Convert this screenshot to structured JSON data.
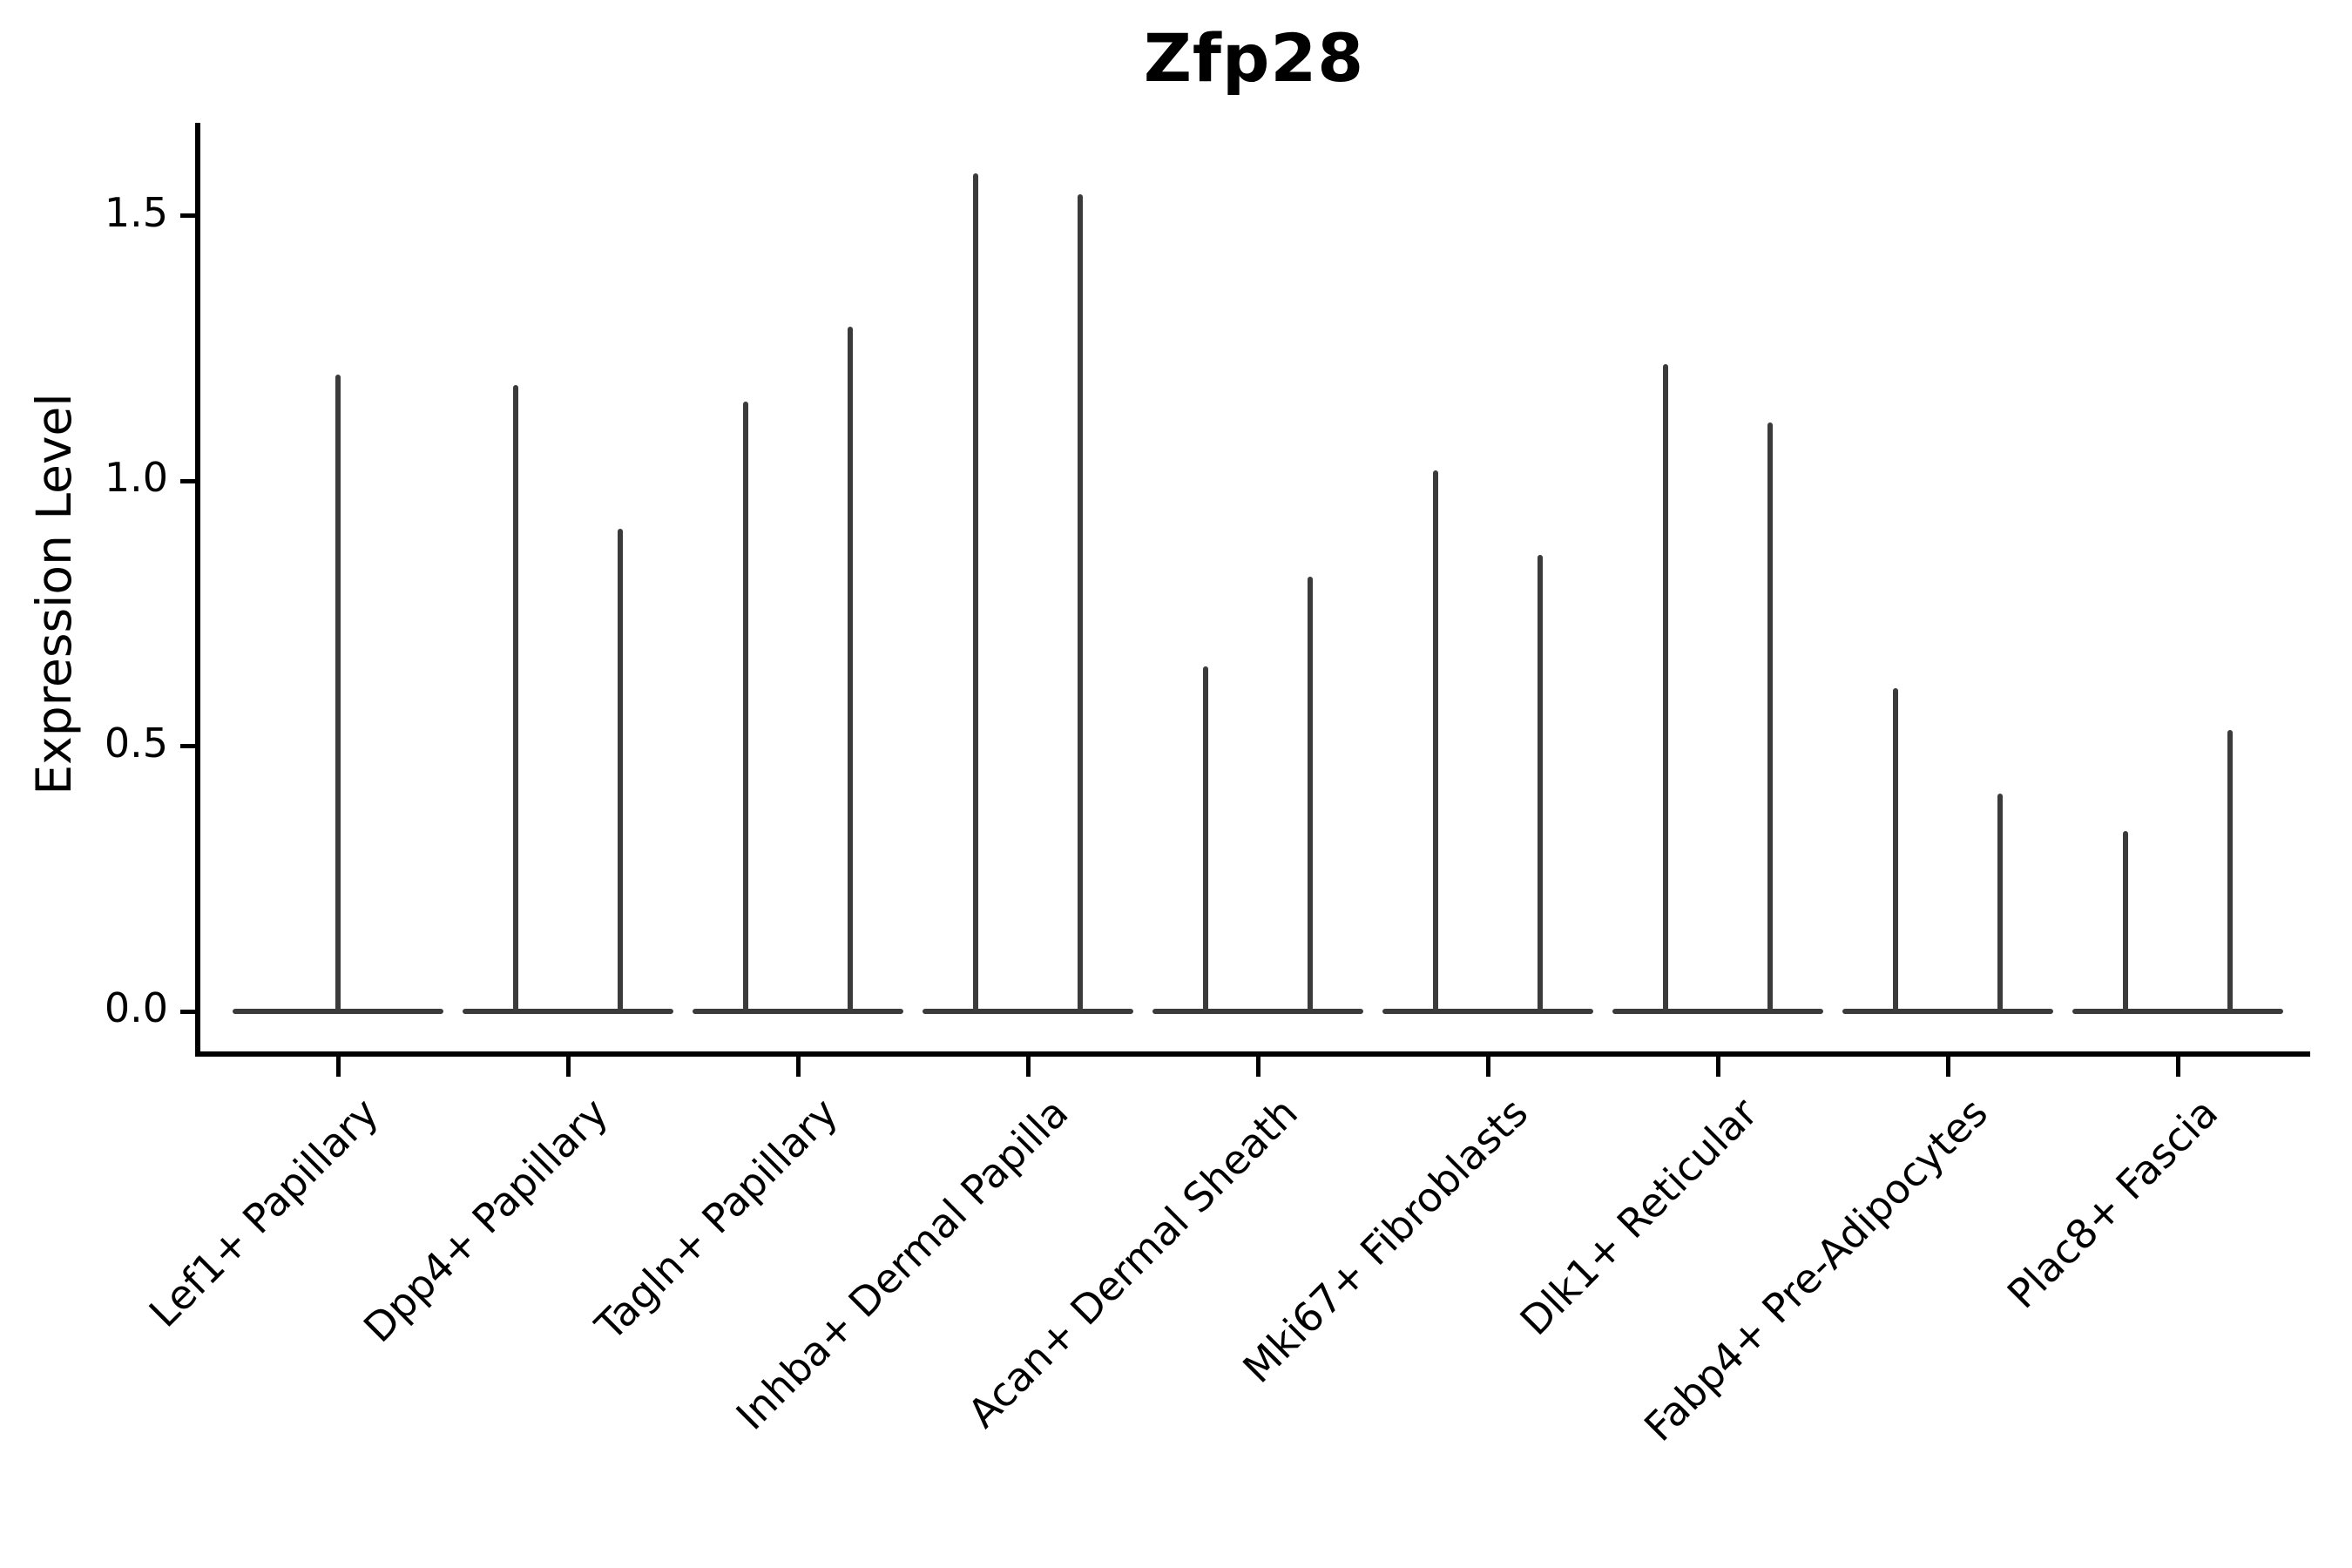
{
  "title": "Zfp28",
  "y_axis": {
    "label": "Expression Level",
    "tick_labels": [
      "0.0",
      "0.5",
      "1.0",
      "1.5"
    ]
  },
  "chart_data": {
    "type": "violin",
    "title": "Zfp28",
    "xlabel": "",
    "ylabel": "Expression Level",
    "ylim": [
      0,
      1.67
    ],
    "yticks": [
      0.0,
      0.5,
      1.0,
      1.5
    ],
    "grid": false,
    "legend": null,
    "orientation": "vertical",
    "note": "Needle-shaped violins: wide flat density at 0 expression with thin spikes up to the per-violin maximum. First category shows a single centered violin; all other categories show two side-by-side violins.",
    "categories": [
      "Lef1+ Papillary",
      "Dpp4+ Papillary",
      "Tagln+ Papillary",
      "Inhba+ Dermal Papilla",
      "Acan+ Dermal Sheath",
      "Mki67+ Fibroblasts",
      "Dlk1+ Reticular",
      "Fabp4+ Pre-Adipocytes",
      "Plac8+ Fascia"
    ],
    "series": [
      {
        "category": "Lef1+ Papillary",
        "violin_maxima": [
          1.2
        ]
      },
      {
        "category": "Dpp4+ Papillary",
        "violin_maxima": [
          1.18,
          0.91
        ]
      },
      {
        "category": "Tagln+ Papillary",
        "violin_maxima": [
          1.15,
          1.29
        ]
      },
      {
        "category": "Inhba+ Dermal Papilla",
        "violin_maxima": [
          1.58,
          1.54
        ]
      },
      {
        "category": "Acan+ Dermal Sheath",
        "violin_maxima": [
          0.65,
          0.82
        ]
      },
      {
        "category": "Mki67+ Fibroblasts",
        "violin_maxima": [
          1.02,
          0.86
        ]
      },
      {
        "category": "Dlk1+ Reticular",
        "violin_maxima": [
          1.22,
          1.11
        ]
      },
      {
        "category": "Fabp4+ Pre-Adipocytes",
        "violin_maxima": [
          0.61,
          0.41
        ]
      },
      {
        "category": "Plac8+ Fascia",
        "violin_maxima": [
          0.34,
          0.53
        ]
      }
    ],
    "colors": {
      "violin": "#3b3b3b",
      "axis": "#000000",
      "text": "#000000",
      "background": "#ffffff"
    }
  }
}
